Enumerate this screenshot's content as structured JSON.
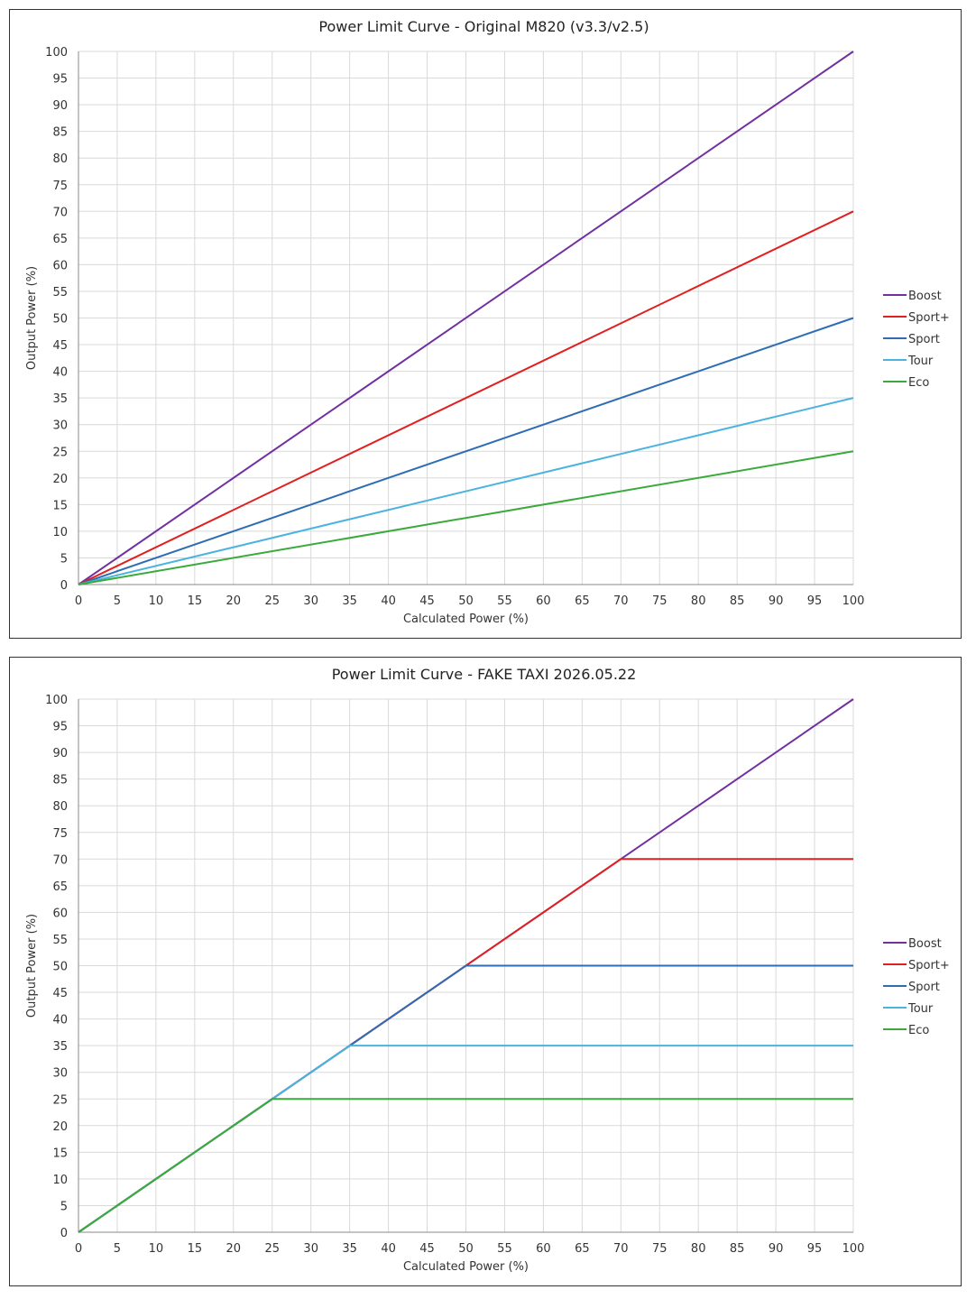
{
  "chart_data": [
    {
      "type": "line",
      "title": "Power Limit Curve - Original M820 (v3.3/v2.5)",
      "xlabel": "Calculated Power (%)",
      "ylabel": "Output Power (%)",
      "xlim": [
        0,
        100
      ],
      "ylim": [
        0,
        100
      ],
      "xticks": [
        0,
        5,
        10,
        15,
        20,
        25,
        30,
        35,
        40,
        45,
        50,
        55,
        60,
        65,
        70,
        75,
        80,
        85,
        90,
        95,
        100
      ],
      "yticks": [
        0,
        5,
        10,
        15,
        20,
        25,
        30,
        35,
        40,
        45,
        50,
        55,
        60,
        65,
        70,
        75,
        80,
        85,
        90,
        95,
        100
      ],
      "grid": true,
      "legend_position": "right",
      "series": [
        {
          "name": "Boost",
          "color": "#7030a0",
          "points": [
            [
              0,
              0
            ],
            [
              100,
              100
            ]
          ]
        },
        {
          "name": "Sport+",
          "color": "#e02020",
          "points": [
            [
              0,
              0
            ],
            [
              100,
              70
            ]
          ]
        },
        {
          "name": "Sport",
          "color": "#2e6db4",
          "points": [
            [
              0,
              0
            ],
            [
              100,
              50
            ]
          ]
        },
        {
          "name": "Tour",
          "color": "#4bb3e0",
          "points": [
            [
              0,
              0
            ],
            [
              100,
              35
            ]
          ]
        },
        {
          "name": "Eco",
          "color": "#3aaa3a",
          "points": [
            [
              0,
              0
            ],
            [
              100,
              25
            ]
          ]
        }
      ]
    },
    {
      "type": "line",
      "title": "Power Limit Curve - FAKE TAXI 2026.05.22",
      "xlabel": "Calculated Power (%)",
      "ylabel": "Output Power (%)",
      "xlim": [
        0,
        100
      ],
      "ylim": [
        0,
        100
      ],
      "xticks": [
        0,
        5,
        10,
        15,
        20,
        25,
        30,
        35,
        40,
        45,
        50,
        55,
        60,
        65,
        70,
        75,
        80,
        85,
        90,
        95,
        100
      ],
      "yticks": [
        0,
        5,
        10,
        15,
        20,
        25,
        30,
        35,
        40,
        45,
        50,
        55,
        60,
        65,
        70,
        75,
        80,
        85,
        90,
        95,
        100
      ],
      "grid": true,
      "legend_position": "right",
      "series": [
        {
          "name": "Boost",
          "color": "#7030a0",
          "points": [
            [
              0,
              0
            ],
            [
              100,
              100
            ]
          ]
        },
        {
          "name": "Sport+",
          "color": "#e02020",
          "points": [
            [
              0,
              0
            ],
            [
              70,
              70
            ],
            [
              100,
              70
            ]
          ]
        },
        {
          "name": "Sport",
          "color": "#2e6db4",
          "points": [
            [
              0,
              0
            ],
            [
              50,
              50
            ],
            [
              100,
              50
            ]
          ]
        },
        {
          "name": "Tour",
          "color": "#4bb3e0",
          "points": [
            [
              0,
              0
            ],
            [
              35,
              35
            ],
            [
              100,
              35
            ]
          ]
        },
        {
          "name": "Eco",
          "color": "#3aaa3a",
          "points": [
            [
              0,
              0
            ],
            [
              25,
              25
            ],
            [
              100,
              25
            ]
          ]
        }
      ]
    }
  ]
}
